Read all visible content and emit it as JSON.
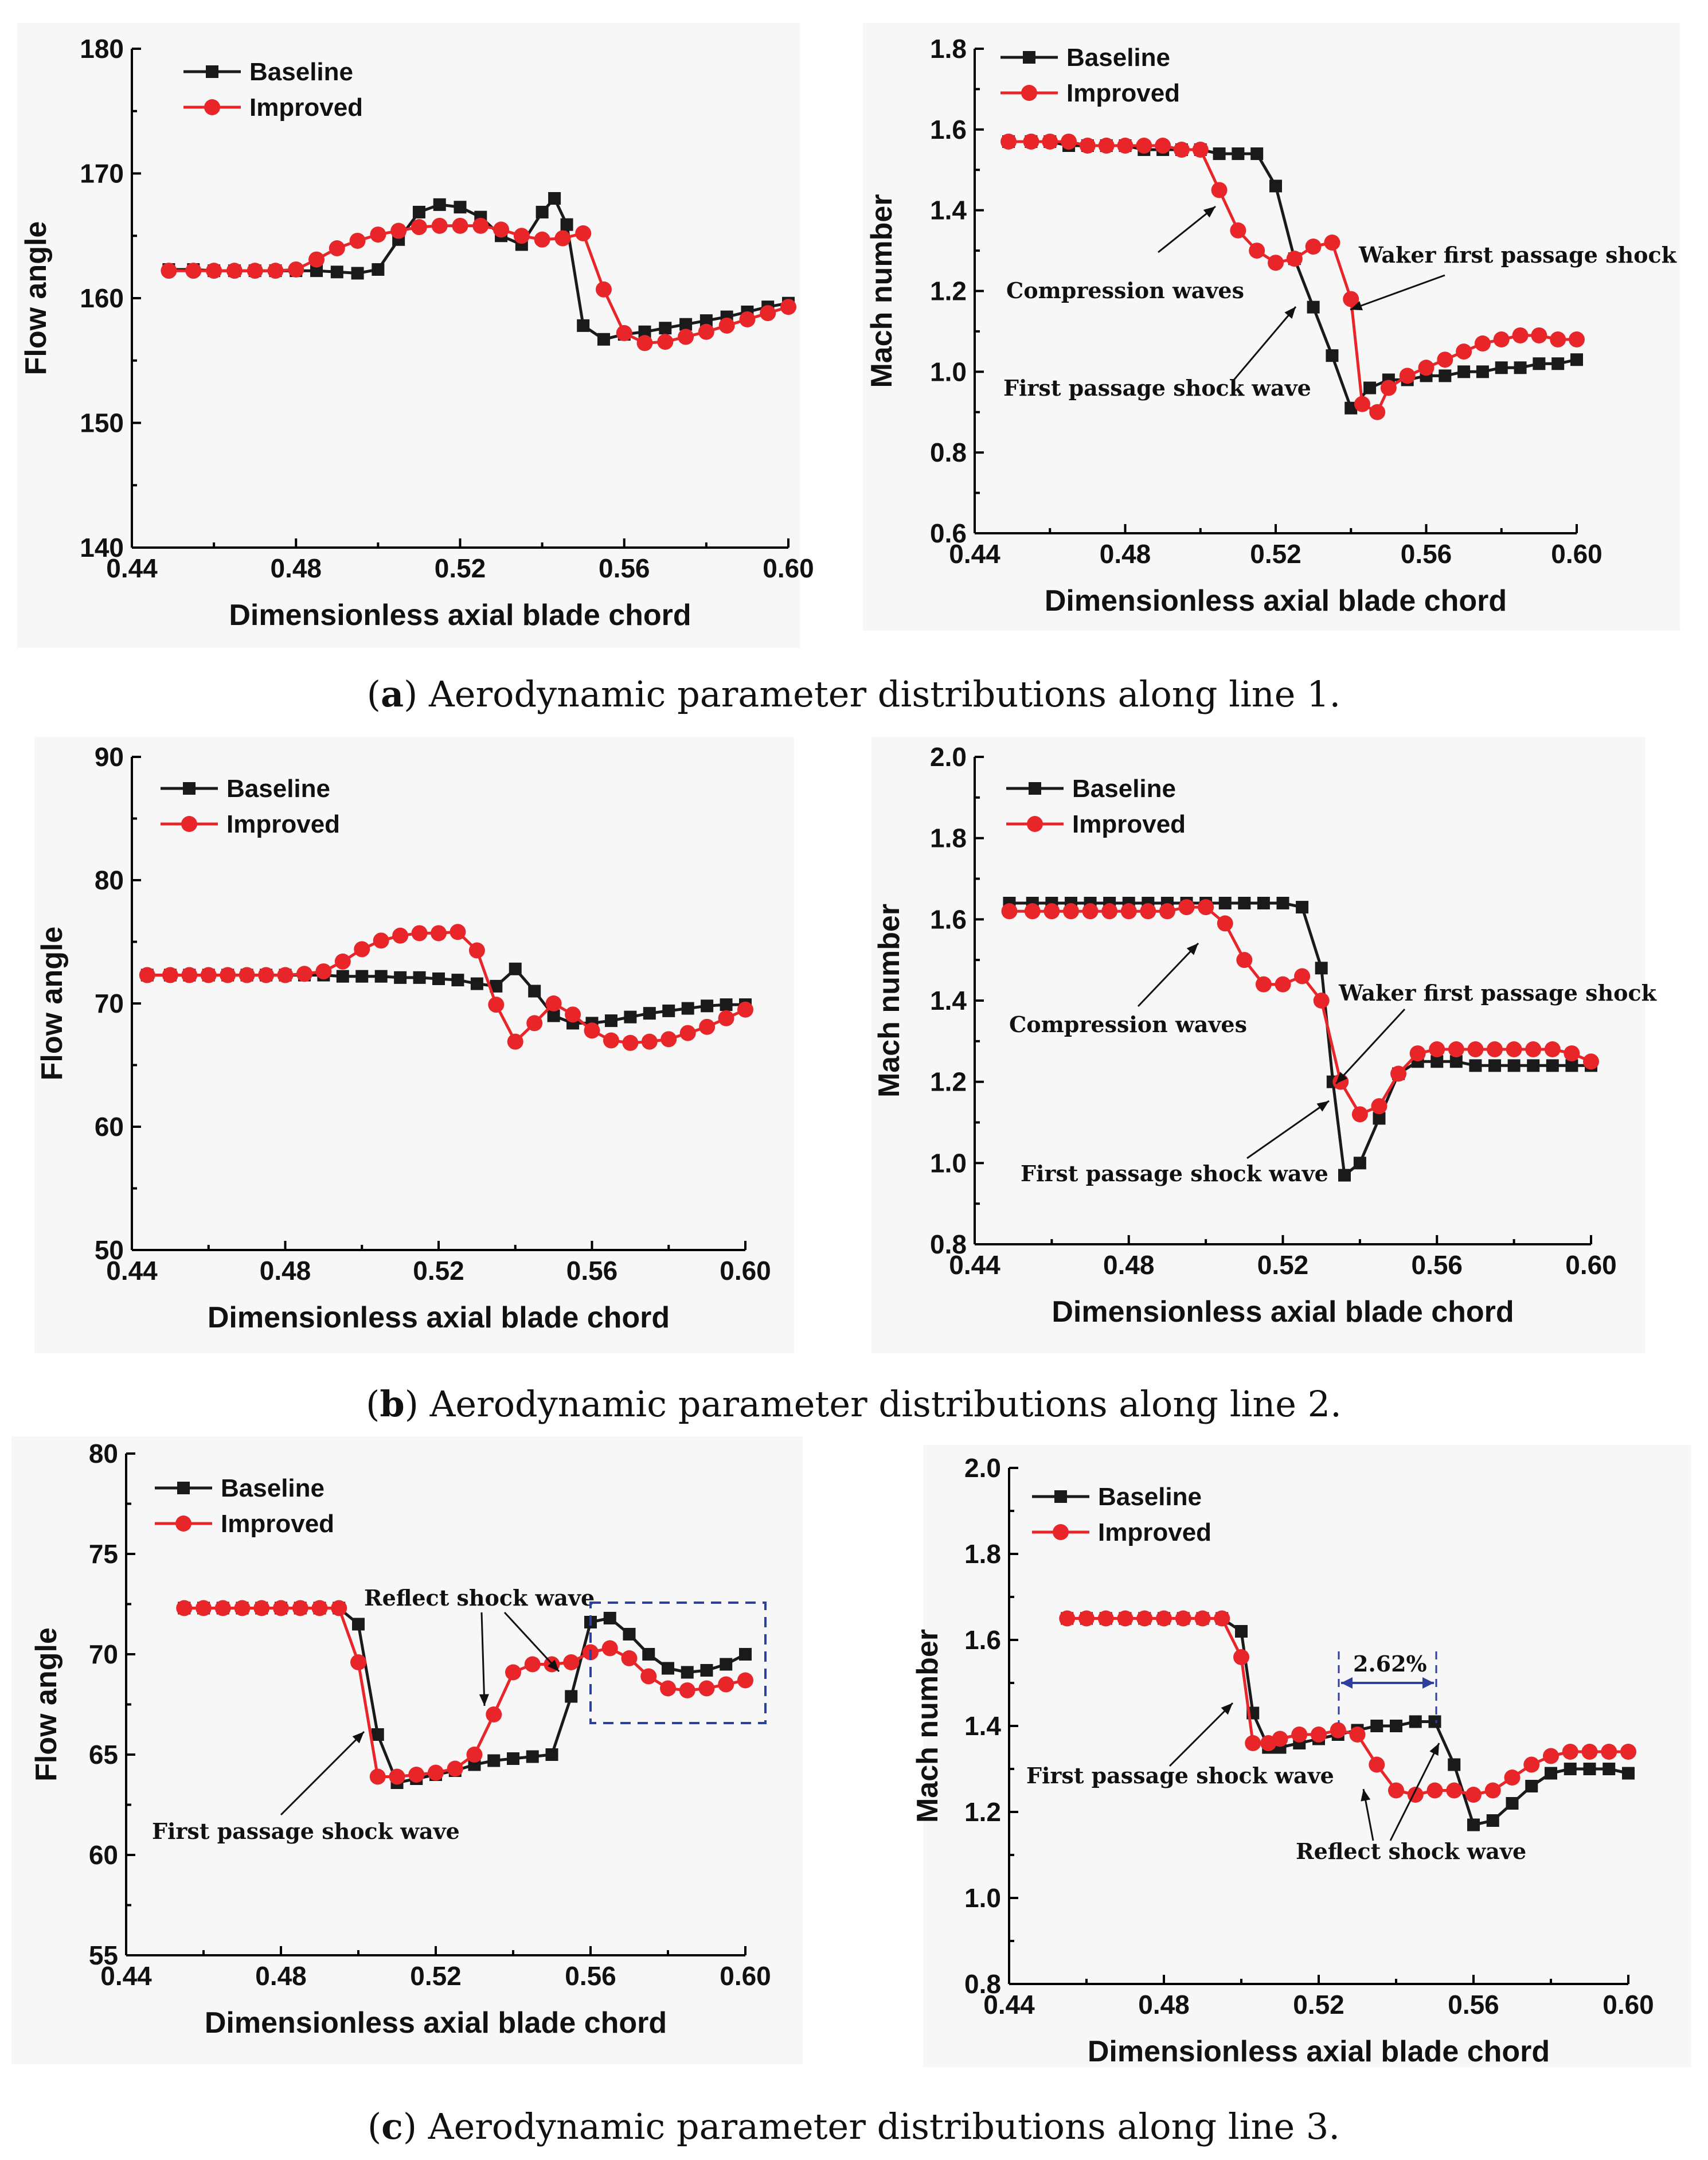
{
  "chart_data": [
    {
      "panel": "a-left",
      "type": "line",
      "xlabel": "Dimensionless axial blade chord",
      "ylabel": "Flow angle",
      "xlim": [
        0.44,
        0.6
      ],
      "ylim": [
        140,
        180
      ],
      "xticks": [
        "0.44",
        "0.48",
        "0.52",
        "0.56",
        "0.60"
      ],
      "yticks": [
        "140",
        "150",
        "160",
        "170",
        "180"
      ],
      "legend": [
        "Baseline",
        "Improved"
      ],
      "series": [
        {
          "name": "Baseline",
          "color": "#1a1a1a",
          "marker": "square",
          "x": [
            0.449,
            0.455,
            0.46,
            0.465,
            0.47,
            0.475,
            0.48,
            0.485,
            0.49,
            0.495,
            0.5,
            0.505,
            0.51,
            0.515,
            0.52,
            0.525,
            0.53,
            0.535,
            0.54,
            0.543,
            0.546,
            0.55,
            0.555,
            0.56,
            0.565,
            0.57,
            0.575,
            0.58,
            0.585,
            0.59,
            0.595,
            0.6
          ],
          "y": [
            162.3,
            162.3,
            162.2,
            162.2,
            162.2,
            162.2,
            162.2,
            162.2,
            162.1,
            162.0,
            162.3,
            164.7,
            166.9,
            167.5,
            167.3,
            166.5,
            165.0,
            164.3,
            166.9,
            168.0,
            165.9,
            157.8,
            156.7,
            157.1,
            157.3,
            157.6,
            157.9,
            158.2,
            158.5,
            158.9,
            159.3,
            159.6
          ]
        },
        {
          "name": "Improved",
          "color": "#e8262a",
          "marker": "circle",
          "x": [
            0.449,
            0.455,
            0.46,
            0.465,
            0.47,
            0.475,
            0.48,
            0.485,
            0.49,
            0.495,
            0.5,
            0.505,
            0.51,
            0.515,
            0.52,
            0.525,
            0.53,
            0.535,
            0.54,
            0.545,
            0.55,
            0.555,
            0.56,
            0.565,
            0.57,
            0.575,
            0.58,
            0.585,
            0.59,
            0.595,
            0.6
          ],
          "y": [
            162.2,
            162.2,
            162.2,
            162.2,
            162.2,
            162.2,
            162.3,
            163.1,
            164.0,
            164.6,
            165.1,
            165.4,
            165.7,
            165.8,
            165.8,
            165.8,
            165.5,
            165.0,
            164.7,
            164.8,
            165.2,
            160.7,
            157.2,
            156.4,
            156.5,
            156.9,
            157.3,
            157.8,
            158.3,
            158.8,
            159.3
          ]
        }
      ]
    },
    {
      "panel": "a-right",
      "type": "line",
      "xlabel": "Dimensionless axial blade chord",
      "ylabel": "Mach number",
      "xlim": [
        0.44,
        0.6
      ],
      "ylim": [
        0.6,
        1.8
      ],
      "xticks": [
        "0.44",
        "0.48",
        "0.52",
        "0.56",
        "0.60"
      ],
      "yticks": [
        "0.6",
        "0.8",
        "1.0",
        "1.2",
        "1.4",
        "1.6",
        "1.8"
      ],
      "legend": [
        "Baseline",
        "Improved"
      ],
      "annotations": [
        "Compression waves",
        "Waker first passage shock",
        "First passage shock wave"
      ],
      "series": [
        {
          "name": "Baseline",
          "color": "#1a1a1a",
          "marker": "square",
          "x": [
            0.449,
            0.455,
            0.46,
            0.465,
            0.47,
            0.475,
            0.48,
            0.485,
            0.49,
            0.495,
            0.5,
            0.505,
            0.51,
            0.515,
            0.52,
            0.525,
            0.53,
            0.535,
            0.54,
            0.545,
            0.55,
            0.555,
            0.56,
            0.565,
            0.57,
            0.575,
            0.58,
            0.585,
            0.59,
            0.595,
            0.6
          ],
          "y": [
            1.57,
            1.57,
            1.57,
            1.56,
            1.56,
            1.56,
            1.56,
            1.55,
            1.55,
            1.55,
            1.55,
            1.54,
            1.54,
            1.54,
            1.46,
            1.28,
            1.16,
            1.04,
            0.91,
            0.96,
            0.98,
            0.98,
            0.99,
            0.99,
            1.0,
            1.0,
            1.01,
            1.01,
            1.02,
            1.02,
            1.03
          ]
        },
        {
          "name": "Improved",
          "color": "#e8262a",
          "marker": "circle",
          "x": [
            0.449,
            0.455,
            0.46,
            0.465,
            0.47,
            0.475,
            0.48,
            0.485,
            0.49,
            0.495,
            0.5,
            0.505,
            0.51,
            0.515,
            0.52,
            0.525,
            0.53,
            0.535,
            0.54,
            0.543,
            0.547,
            0.55,
            0.555,
            0.56,
            0.565,
            0.57,
            0.575,
            0.58,
            0.585,
            0.59,
            0.595,
            0.6
          ],
          "y": [
            1.57,
            1.57,
            1.57,
            1.57,
            1.56,
            1.56,
            1.56,
            1.56,
            1.56,
            1.55,
            1.55,
            1.45,
            1.35,
            1.3,
            1.27,
            1.28,
            1.31,
            1.32,
            1.18,
            0.92,
            0.9,
            0.96,
            0.99,
            1.01,
            1.03,
            1.05,
            1.07,
            1.08,
            1.09,
            1.09,
            1.08,
            1.08
          ]
        }
      ]
    },
    {
      "panel": "b-left",
      "type": "line",
      "xlabel": "Dimensionless axial blade chord",
      "ylabel": "Flow angle",
      "xlim": [
        0.44,
        0.6
      ],
      "ylim": [
        50,
        90
      ],
      "xticks": [
        "0.44",
        "0.48",
        "0.52",
        "0.56",
        "0.60"
      ],
      "yticks": [
        "50",
        "60",
        "70",
        "80",
        "90"
      ],
      "legend": [
        "Baseline",
        "Improved"
      ],
      "series": [
        {
          "name": "Baseline",
          "color": "#1a1a1a",
          "marker": "square",
          "x": [
            0.444,
            0.45,
            0.455,
            0.46,
            0.465,
            0.47,
            0.475,
            0.48,
            0.485,
            0.49,
            0.495,
            0.5,
            0.505,
            0.51,
            0.515,
            0.52,
            0.525,
            0.53,
            0.535,
            0.54,
            0.545,
            0.55,
            0.555,
            0.56,
            0.565,
            0.57,
            0.575,
            0.58,
            0.585,
            0.59,
            0.595,
            0.6
          ],
          "y": [
            72.3,
            72.3,
            72.3,
            72.3,
            72.3,
            72.3,
            72.3,
            72.3,
            72.3,
            72.3,
            72.2,
            72.2,
            72.2,
            72.1,
            72.1,
            72.0,
            71.9,
            71.6,
            71.4,
            72.8,
            71.0,
            69.0,
            68.4,
            68.4,
            68.6,
            68.9,
            69.2,
            69.4,
            69.6,
            69.8,
            69.9,
            69.9
          ]
        },
        {
          "name": "Improved",
          "color": "#e8262a",
          "marker": "circle",
          "x": [
            0.444,
            0.45,
            0.455,
            0.46,
            0.465,
            0.47,
            0.475,
            0.48,
            0.485,
            0.49,
            0.495,
            0.5,
            0.505,
            0.51,
            0.515,
            0.52,
            0.525,
            0.53,
            0.535,
            0.54,
            0.545,
            0.55,
            0.555,
            0.56,
            0.565,
            0.57,
            0.575,
            0.58,
            0.585,
            0.59,
            0.595,
            0.6
          ],
          "y": [
            72.3,
            72.3,
            72.3,
            72.3,
            72.3,
            72.3,
            72.3,
            72.3,
            72.4,
            72.6,
            73.4,
            74.4,
            75.1,
            75.5,
            75.7,
            75.7,
            75.8,
            74.3,
            69.9,
            66.9,
            68.4,
            70.0,
            69.1,
            67.8,
            67.0,
            66.8,
            66.9,
            67.1,
            67.6,
            68.1,
            68.8,
            69.5
          ]
        }
      ]
    },
    {
      "panel": "b-right",
      "type": "line",
      "xlabel": "Dimensionless axial blade chord",
      "ylabel": "Mach number",
      "xlim": [
        0.44,
        0.6
      ],
      "ylim": [
        0.8,
        2.0
      ],
      "xticks": [
        "0.44",
        "0.48",
        "0.52",
        "0.56",
        "0.60"
      ],
      "yticks": [
        "0.8",
        "1.0",
        "1.2",
        "1.4",
        "1.6",
        "1.8",
        "2.0"
      ],
      "legend": [
        "Baseline",
        "Improved"
      ],
      "annotations": [
        "Compression waves",
        "Waker first passage shock",
        "First passage shock wave"
      ],
      "series": [
        {
          "name": "Baseline",
          "color": "#1a1a1a",
          "marker": "square",
          "x": [
            0.449,
            0.455,
            0.46,
            0.465,
            0.47,
            0.475,
            0.48,
            0.485,
            0.49,
            0.495,
            0.5,
            0.505,
            0.51,
            0.515,
            0.52,
            0.525,
            0.53,
            0.533,
            0.536,
            0.54,
            0.545,
            0.55,
            0.555,
            0.56,
            0.565,
            0.57,
            0.575,
            0.58,
            0.585,
            0.59,
            0.595,
            0.6
          ],
          "y": [
            1.64,
            1.64,
            1.64,
            1.64,
            1.64,
            1.64,
            1.64,
            1.64,
            1.64,
            1.64,
            1.64,
            1.64,
            1.64,
            1.64,
            1.64,
            1.63,
            1.48,
            1.2,
            0.97,
            1.0,
            1.11,
            1.22,
            1.25,
            1.25,
            1.25,
            1.24,
            1.24,
            1.24,
            1.24,
            1.24,
            1.24,
            1.24
          ]
        },
        {
          "name": "Improved",
          "color": "#e8262a",
          "marker": "circle",
          "x": [
            0.449,
            0.455,
            0.46,
            0.465,
            0.47,
            0.475,
            0.48,
            0.485,
            0.49,
            0.495,
            0.5,
            0.505,
            0.51,
            0.515,
            0.52,
            0.525,
            0.53,
            0.535,
            0.54,
            0.545,
            0.55,
            0.555,
            0.56,
            0.565,
            0.57,
            0.575,
            0.58,
            0.585,
            0.59,
            0.595,
            0.6
          ],
          "y": [
            1.62,
            1.62,
            1.62,
            1.62,
            1.62,
            1.62,
            1.62,
            1.62,
            1.62,
            1.63,
            1.63,
            1.59,
            1.5,
            1.44,
            1.44,
            1.46,
            1.4,
            1.2,
            1.12,
            1.14,
            1.22,
            1.27,
            1.28,
            1.28,
            1.28,
            1.28,
            1.28,
            1.28,
            1.28,
            1.27,
            1.25
          ]
        }
      ]
    },
    {
      "panel": "c-left",
      "type": "line",
      "xlabel": "Dimensionless axial blade chord",
      "ylabel": "Flow angle",
      "xlim": [
        0.44,
        0.6
      ],
      "ylim": [
        55,
        80
      ],
      "xticks": [
        "0.44",
        "0.48",
        "0.52",
        "0.56",
        "0.60"
      ],
      "yticks": [
        "55",
        "60",
        "65",
        "70",
        "75",
        "80"
      ],
      "legend": [
        "Baseline",
        "Improved"
      ],
      "annotations": [
        "Reflect shock wave",
        "First passage shock wave"
      ],
      "series": [
        {
          "name": "Baseline",
          "color": "#1a1a1a",
          "marker": "square",
          "x": [
            0.455,
            0.46,
            0.465,
            0.47,
            0.475,
            0.48,
            0.485,
            0.49,
            0.495,
            0.5,
            0.505,
            0.51,
            0.515,
            0.52,
            0.525,
            0.53,
            0.535,
            0.54,
            0.545,
            0.55,
            0.555,
            0.56,
            0.565,
            0.57,
            0.575,
            0.58,
            0.585,
            0.59,
            0.595,
            0.6
          ],
          "y": [
            72.3,
            72.3,
            72.3,
            72.3,
            72.3,
            72.3,
            72.3,
            72.3,
            72.3,
            71.5,
            66.0,
            63.6,
            63.8,
            64.0,
            64.2,
            64.5,
            64.7,
            64.8,
            64.9,
            65.0,
            67.9,
            71.6,
            71.8,
            71.0,
            70.0,
            69.3,
            69.1,
            69.2,
            69.5,
            70.0
          ]
        },
        {
          "name": "Improved",
          "color": "#e8262a",
          "marker": "circle",
          "x": [
            0.455,
            0.46,
            0.465,
            0.47,
            0.475,
            0.48,
            0.485,
            0.49,
            0.495,
            0.5,
            0.505,
            0.51,
            0.515,
            0.52,
            0.525,
            0.53,
            0.535,
            0.54,
            0.545,
            0.55,
            0.555,
            0.56,
            0.565,
            0.57,
            0.575,
            0.58,
            0.585,
            0.59,
            0.595,
            0.6
          ],
          "y": [
            72.3,
            72.3,
            72.3,
            72.3,
            72.3,
            72.3,
            72.3,
            72.3,
            72.3,
            69.6,
            63.9,
            63.9,
            64.0,
            64.1,
            64.3,
            65.0,
            67.0,
            69.1,
            69.5,
            69.5,
            69.6,
            70.1,
            70.3,
            69.8,
            68.9,
            68.3,
            68.2,
            68.3,
            68.5,
            68.7
          ]
        }
      ]
    },
    {
      "panel": "c-right",
      "type": "line",
      "xlabel": "Dimensionless axial blade chord",
      "ylabel": "Mach number",
      "xlim": [
        0.44,
        0.6
      ],
      "ylim": [
        0.8,
        2.0
      ],
      "xticks": [
        "0.44",
        "0.48",
        "0.52",
        "0.56",
        "0.60"
      ],
      "yticks": [
        "0.8",
        "1.0",
        "1.2",
        "1.4",
        "1.6",
        "1.8",
        "2.0"
      ],
      "legend": [
        "Baseline",
        "Improved"
      ],
      "annotations": [
        "2.62%",
        "First passage shock wave",
        "Reflect shock wave"
      ],
      "series": [
        {
          "name": "Baseline",
          "color": "#1a1a1a",
          "marker": "square",
          "x": [
            0.455,
            0.46,
            0.465,
            0.47,
            0.475,
            0.48,
            0.485,
            0.49,
            0.495,
            0.5,
            0.503,
            0.507,
            0.51,
            0.515,
            0.52,
            0.525,
            0.53,
            0.535,
            0.54,
            0.545,
            0.55,
            0.555,
            0.56,
            0.565,
            0.57,
            0.575,
            0.58,
            0.585,
            0.59,
            0.595,
            0.6
          ],
          "y": [
            1.65,
            1.65,
            1.65,
            1.65,
            1.65,
            1.65,
            1.65,
            1.65,
            1.65,
            1.62,
            1.43,
            1.35,
            1.35,
            1.36,
            1.37,
            1.38,
            1.39,
            1.4,
            1.4,
            1.41,
            1.41,
            1.31,
            1.17,
            1.18,
            1.22,
            1.26,
            1.29,
            1.3,
            1.3,
            1.3,
            1.29
          ]
        },
        {
          "name": "Improved",
          "color": "#e8262a",
          "marker": "circle",
          "x": [
            0.455,
            0.46,
            0.465,
            0.47,
            0.475,
            0.48,
            0.485,
            0.49,
            0.495,
            0.5,
            0.503,
            0.507,
            0.51,
            0.515,
            0.52,
            0.525,
            0.53,
            0.535,
            0.54,
            0.545,
            0.55,
            0.555,
            0.56,
            0.565,
            0.57,
            0.575,
            0.58,
            0.585,
            0.59,
            0.595,
            0.6
          ],
          "y": [
            1.65,
            1.65,
            1.65,
            1.65,
            1.65,
            1.65,
            1.65,
            1.65,
            1.65,
            1.56,
            1.36,
            1.36,
            1.37,
            1.38,
            1.38,
            1.39,
            1.38,
            1.31,
            1.25,
            1.24,
            1.25,
            1.25,
            1.24,
            1.25,
            1.28,
            1.31,
            1.33,
            1.34,
            1.34,
            1.34,
            1.34
          ]
        }
      ]
    }
  ],
  "captions": [
    {
      "letter": "a",
      "text": ") Aerodynamic parameter distributions along line 1."
    },
    {
      "letter": "b",
      "text": ") Aerodynamic parameter distributions along line 2."
    },
    {
      "letter": "c",
      "text": ") Aerodynamic parameter distributions along line 3."
    }
  ]
}
